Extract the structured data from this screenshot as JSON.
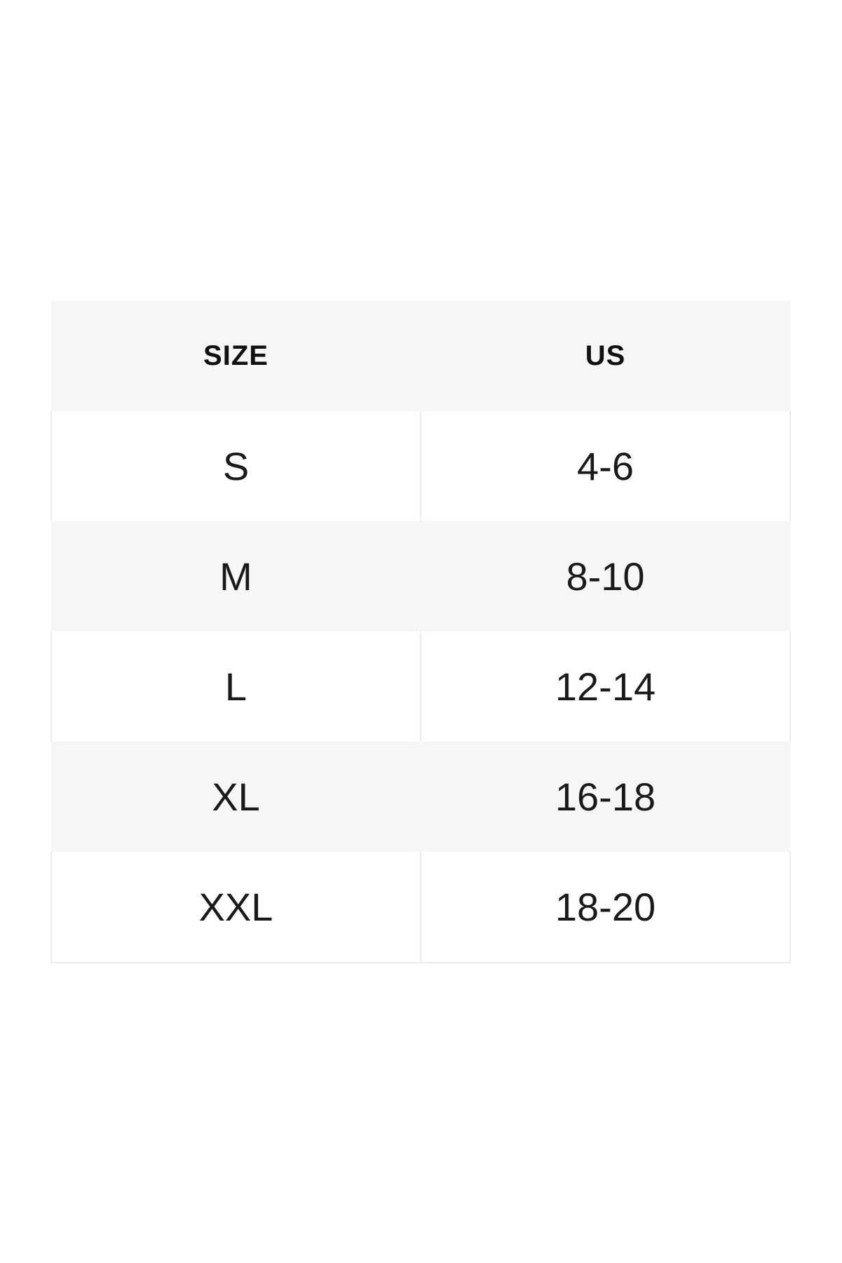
{
  "page": {
    "background": "#ffffff"
  },
  "size_chart": {
    "columns": [
      "SIZE",
      "US"
    ],
    "rows": [
      {
        "size": "S",
        "us": "4-6"
      },
      {
        "size": "M",
        "us": "8-10"
      },
      {
        "size": "L",
        "us": "12-14"
      },
      {
        "size": "XL",
        "us": "16-18"
      },
      {
        "size": "XXL",
        "us": "18-20"
      }
    ],
    "colors": {
      "header_bg": "#f6f6f6",
      "row_bg": "#ffffff",
      "row_alt_bg": "#f6f6f6",
      "divider": "#ececec",
      "header_text": "#111111",
      "cell_text": "#1a1a1a"
    }
  }
}
